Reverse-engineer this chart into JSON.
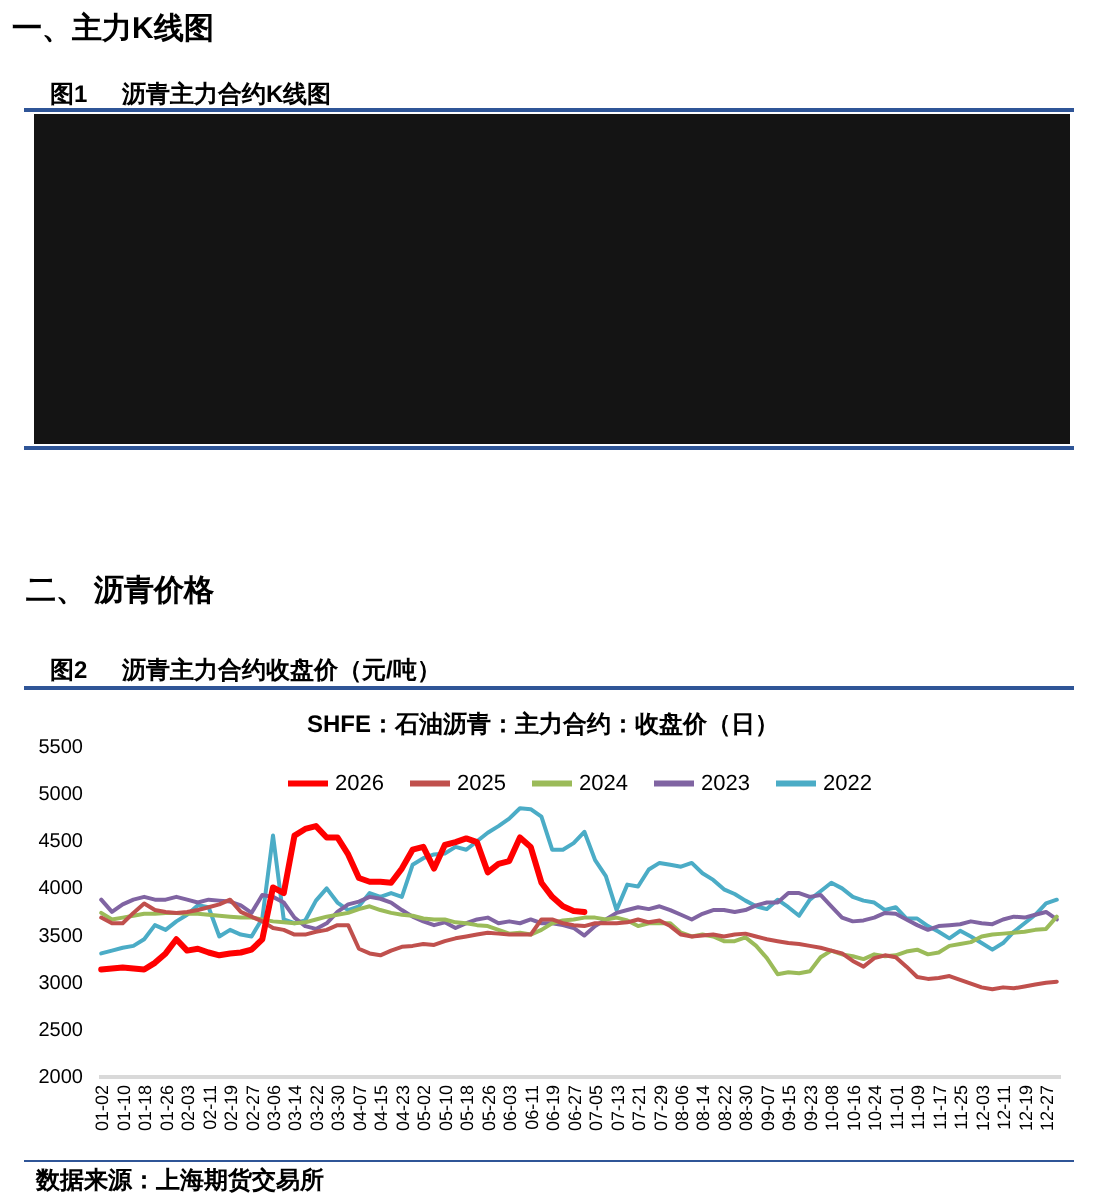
{
  "chart_data": [
    {
      "type": "other",
      "title": "图1 沥青主力合约K线图",
      "annotations": [
        "一、主力K线图"
      ]
    },
    {
      "type": "line",
      "title": "图2 沥青主力合约收盘价（元/吨）",
      "subtitle": "SHFE：石油沥青：主力合约：收盘价（日）",
      "annotations": [
        "二、 沥青价格",
        "数据来源：上海期货交易所"
      ],
      "categories": [
        "01-02",
        null,
        "01-10",
        null,
        "01-18",
        null,
        "01-26",
        null,
        "02-03",
        null,
        "02-11",
        null,
        "02-19",
        null,
        "02-27",
        null,
        "03-06",
        null,
        "03-14",
        null,
        "03-22",
        null,
        "03-30",
        null,
        "04-07",
        null,
        "04-15",
        null,
        "04-23",
        null,
        "05-02",
        null,
        "05-10",
        null,
        "05-18",
        null,
        "05-26",
        null,
        "06-03",
        null,
        "06-11",
        null,
        "06-19",
        null,
        "06-27",
        null,
        "07-05",
        null,
        "07-13",
        null,
        "07-21",
        null,
        "07-29",
        null,
        "08-06",
        null,
        "08-14",
        null,
        "08-22",
        null,
        "08-30",
        null,
        "09-07",
        null,
        "09-15",
        null,
        "09-23",
        null,
        "10-08",
        null,
        "10-16",
        null,
        "10-24",
        null,
        "11-01",
        null,
        "11-09",
        null,
        "11-17",
        null,
        "11-25",
        null,
        "12-03",
        null,
        "12-11",
        null,
        "12-19",
        null,
        "12-27",
        null
      ],
      "series": [
        {
          "name": "2026",
          "color": "#ff0000",
          "values": [
            3130,
            3140,
            3150,
            3140,
            3130,
            3200,
            3300,
            3450,
            3330,
            3350,
            3310,
            3280,
            3300,
            3310,
            3340,
            3450,
            4000,
            3940,
            4550,
            4620,
            4650,
            4530,
            4530,
            4350,
            4100,
            4060,
            4060,
            4050,
            4200,
            4400,
            4430,
            4200,
            4450,
            4480,
            4520,
            4480,
            4160,
            4250,
            4280,
            4530,
            4430,
            4050,
            3900,
            3800,
            3750,
            3740,
            null,
            null,
            null,
            null,
            null,
            null,
            null,
            null,
            null,
            null,
            null,
            null,
            null,
            null,
            null,
            null,
            null,
            null,
            null,
            null,
            null,
            null,
            null,
            null,
            null,
            null,
            null,
            null,
            null,
            null,
            null,
            null,
            null,
            null,
            null,
            null,
            null,
            null,
            null,
            null,
            null,
            null,
            null,
            null
          ]
        },
        {
          "name": "2025",
          "color": "#c0504d",
          "values": [
            3680,
            3620,
            3620,
            3730,
            3830,
            3760,
            3740,
            3730,
            3740,
            3760,
            3790,
            3820,
            3870,
            3740,
            3690,
            3640,
            3570,
            3550,
            3500,
            3500,
            3530,
            3550,
            3600,
            3600,
            3350,
            3300,
            3280,
            3330,
            3370,
            3380,
            3400,
            3390,
            3430,
            3460,
            3480,
            3500,
            3520,
            3510,
            3500,
            3500,
            3500,
            3660,
            3660,
            3620,
            3600,
            3590,
            3620,
            3620,
            3620,
            3630,
            3660,
            3630,
            3650,
            3590,
            3500,
            3480,
            3490,
            3500,
            3480,
            3500,
            3510,
            3480,
            3450,
            3430,
            3410,
            3400,
            3380,
            3360,
            3330,
            3300,
            3220,
            3160,
            3250,
            3280,
            3260,
            3160,
            3050,
            3030,
            3040,
            3060,
            3020,
            2980,
            2940,
            2920,
            2940,
            2930,
            2950,
            2970,
            2990,
            3000
          ]
        },
        {
          "name": "2024",
          "color": "#9bbb59",
          "values": [
            3730,
            3660,
            3680,
            3700,
            3720,
            3720,
            3730,
            3730,
            3720,
            3720,
            3710,
            3700,
            3690,
            3680,
            3680,
            3660,
            3640,
            3630,
            3620,
            3630,
            3660,
            3690,
            3710,
            3730,
            3770,
            3800,
            3760,
            3730,
            3710,
            3700,
            3670,
            3660,
            3660,
            3630,
            3620,
            3600,
            3590,
            3550,
            3510,
            3520,
            3500,
            3550,
            3620,
            3650,
            3660,
            3680,
            3680,
            3660,
            3680,
            3650,
            3590,
            3620,
            3620,
            3620,
            3520,
            3480,
            3500,
            3480,
            3430,
            3430,
            3470,
            3380,
            3250,
            3080,
            3100,
            3090,
            3110,
            3260,
            3330,
            3290,
            3270,
            3240,
            3290,
            3270,
            3280,
            3320,
            3340,
            3290,
            3310,
            3380,
            3400,
            3420,
            3480,
            3500,
            3510,
            3520,
            3530,
            3550,
            3560,
            3690
          ]
        },
        {
          "name": "2023",
          "color": "#8064a2",
          "values": [
            3870,
            3740,
            3820,
            3870,
            3900,
            3870,
            3870,
            3900,
            3870,
            3840,
            3870,
            3860,
            3850,
            3810,
            3730,
            3920,
            3900,
            3840,
            3680,
            3590,
            3560,
            3620,
            3740,
            3820,
            3850,
            3900,
            3880,
            3840,
            3760,
            3690,
            3640,
            3600,
            3630,
            3570,
            3620,
            3660,
            3680,
            3620,
            3640,
            3620,
            3660,
            3620,
            3620,
            3600,
            3570,
            3490,
            3590,
            3660,
            3730,
            3760,
            3790,
            3770,
            3800,
            3760,
            3710,
            3660,
            3720,
            3760,
            3760,
            3740,
            3760,
            3810,
            3840,
            3840,
            3940,
            3940,
            3900,
            3920,
            3800,
            3680,
            3640,
            3650,
            3680,
            3730,
            3720,
            3660,
            3600,
            3550,
            3590,
            3600,
            3610,
            3640,
            3620,
            3610,
            3660,
            3690,
            3680,
            3710,
            3740,
            3660
          ]
        },
        {
          "name": "2022",
          "color": "#4bacc6",
          "values": [
            3300,
            3330,
            3360,
            3380,
            3450,
            3600,
            3550,
            3640,
            3710,
            3810,
            3790,
            3480,
            3550,
            3500,
            3480,
            3670,
            4550,
            3660,
            3620,
            3650,
            3860,
            3990,
            3840,
            3760,
            3800,
            3940,
            3900,
            3940,
            3900,
            4240,
            4310,
            4350,
            4360,
            4430,
            4400,
            4490,
            4580,
            4650,
            4730,
            4840,
            4830,
            4750,
            4400,
            4400,
            4470,
            4590,
            4290,
            4120,
            3760,
            4030,
            4010,
            4190,
            4260,
            4240,
            4220,
            4260,
            4150,
            4080,
            3980,
            3930,
            3860,
            3800,
            3770,
            3870,
            3790,
            3700,
            3870,
            3960,
            4050,
            3990,
            3900,
            3860,
            3840,
            3760,
            3790,
            3670,
            3670,
            3590,
            3530,
            3460,
            3540,
            3480,
            3410,
            3340,
            3410,
            3530,
            3620,
            3710,
            3830,
            3870
          ]
        }
      ],
      "ylim": [
        2000,
        5500
      ],
      "yticks": [
        2000,
        2500,
        3000,
        3500,
        4000,
        4500,
        5000,
        5500
      ],
      "legend": "top"
    }
  ]
}
